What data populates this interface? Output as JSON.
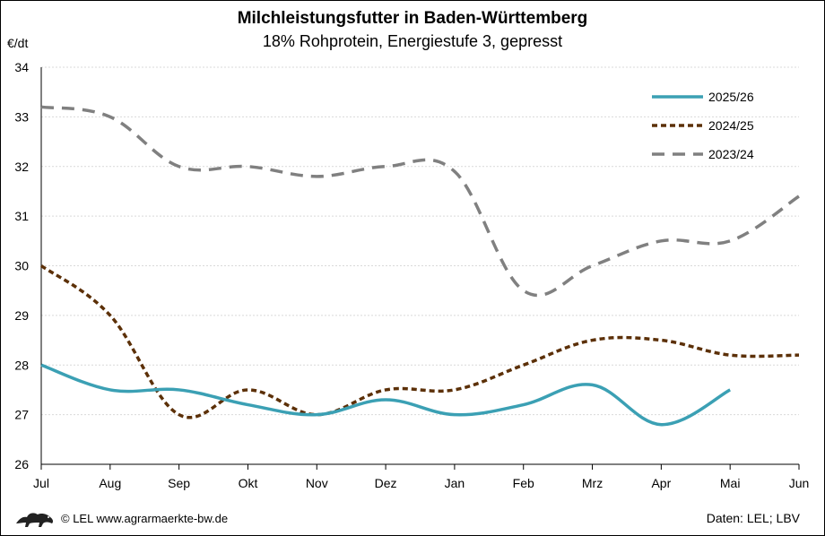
{
  "header": {
    "title": "Milchleistungsfutter in Baden-Württemberg",
    "subtitle": "18% Rohprotein, Energiestufe 3, gepresst"
  },
  "footer": {
    "copyright": "© LEL www.agrarmaerkte-bw.de",
    "source": "Daten: LEL; LBV"
  },
  "icons": {
    "logo": "baden-wuerttemberg-lion-logo"
  },
  "chart_data": {
    "type": "line",
    "ylabel": "€/dt",
    "ylim": [
      26,
      34
    ],
    "yticks": [
      26,
      27,
      28,
      29,
      30,
      31,
      32,
      33,
      34
    ],
    "categories": [
      "Jul",
      "Aug",
      "Sep",
      "Okt",
      "Nov",
      "Dez",
      "Jan",
      "Feb",
      "Mrz",
      "Apr",
      "Mai",
      "Jun"
    ],
    "grid": true,
    "legend": "top-right",
    "series": [
      {
        "name": "2025/26",
        "color": "#3ba0b4",
        "style": "solid",
        "values": [
          28.0,
          27.5,
          27.5,
          27.2,
          27.0,
          27.3,
          27.0,
          27.2,
          27.6,
          26.8,
          27.5,
          null
        ]
      },
      {
        "name": "2024/25",
        "color": "#5c3008",
        "style": "dotted",
        "values": [
          30.0,
          29.0,
          27.0,
          27.5,
          27.0,
          27.5,
          27.5,
          28.0,
          28.5,
          28.5,
          28.2,
          28.2
        ]
      },
      {
        "name": "2023/24",
        "color": "#808080",
        "style": "dashed",
        "values": [
          33.2,
          33.0,
          32.0,
          32.0,
          31.8,
          32.0,
          31.9,
          29.5,
          30.0,
          30.5,
          30.5,
          31.4
        ]
      }
    ]
  }
}
